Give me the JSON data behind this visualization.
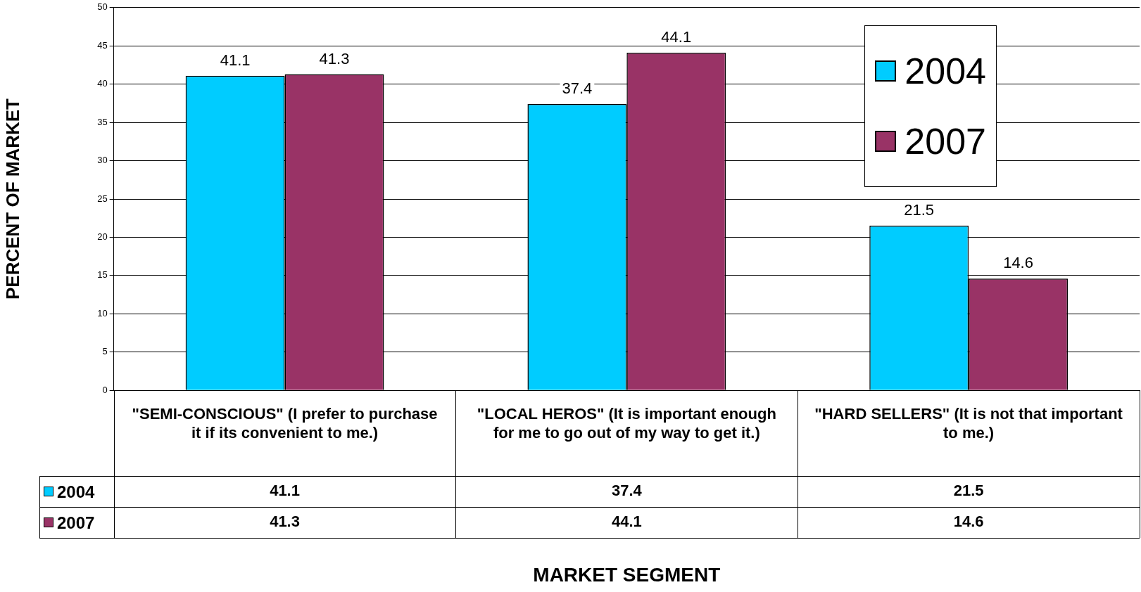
{
  "chart_data": {
    "type": "bar",
    "ylabel": "PERCENT OF MARKET",
    "categories": [
      "\"SEMI-CONSCIOUS\" (I prefer to purchase it if its convenient to me.)",
      "\"LOCAL HEROS\" (It is important enough for me to go out of my way to get it.)",
      "\"HARD SELLERS\" (It is not that important to me.)"
    ],
    "series": [
      {
        "name": "2004",
        "color": "#00ccff",
        "values": [
          41.1,
          37.4,
          21.5
        ],
        "value_labels": [
          "41.1",
          "37.4",
          "21.5"
        ]
      },
      {
        "name": "2007",
        "color": "#993366",
        "values": [
          41.3,
          44.1,
          14.6
        ],
        "value_labels": [
          "41.3",
          "44.1",
          "14.6"
        ]
      }
    ],
    "ylim": [
      0,
      50
    ],
    "yticks": [
      0,
      5,
      10,
      15,
      20,
      25,
      30,
      35,
      40,
      45,
      50
    ],
    "annotations": [
      "41.1",
      "37.4",
      "21.5",
      "41.3",
      "44.1",
      "14.6",
      "MARKET SEGMENT"
    ],
    "grid": "y",
    "legend": "top right"
  }
}
